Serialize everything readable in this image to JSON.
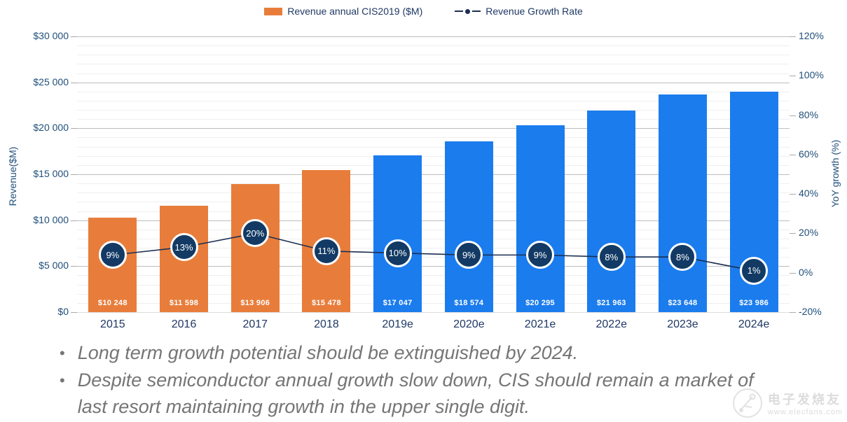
{
  "legend": {
    "bar_label": "Revenue annual CIS2019 ($M)",
    "line_label": "Revenue Growth Rate"
  },
  "chart_data": {
    "type": "bar",
    "subtype": "bar+line combo",
    "categories": [
      "2015",
      "2016",
      "2017",
      "2018",
      "2019e",
      "2020e",
      "2021e",
      "2022e",
      "2023e",
      "2024e"
    ],
    "series": [
      {
        "name": "Revenue annual CIS2019 ($M)",
        "type": "bar",
        "axis": "left",
        "values": [
          10248,
          11598,
          13906,
          15478,
          17047,
          18574,
          20295,
          21963,
          23648,
          23986
        ],
        "labels": [
          "$10 248",
          "$11 598",
          "$13 906",
          "$15 478",
          "$17 047",
          "$18 574",
          "$20 295",
          "$21 963",
          "$23 648",
          "$23 986"
        ],
        "point_colors": [
          "#E87D3B",
          "#E87D3B",
          "#E87D3B",
          "#E87D3B",
          "#1B7CEE",
          "#1B7CEE",
          "#1B7CEE",
          "#1B7CEE",
          "#1B7CEE",
          "#1B7CEE"
        ]
      },
      {
        "name": "Revenue Growth Rate",
        "type": "line",
        "axis": "right",
        "values": [
          9,
          13,
          20,
          11,
          10,
          9,
          9,
          8,
          8,
          1
        ],
        "labels": [
          "9%",
          "13%",
          "20%",
          "11%",
          "10%",
          "9%",
          "9%",
          "8%",
          "8%",
          "1%"
        ],
        "line_color": "#1C2E52",
        "marker_fill": "#123A64",
        "marker_ring": "#FFFFFF"
      }
    ],
    "left_axis": {
      "title": "Revenue($M)",
      "min": 0,
      "max": 30000,
      "major_step": 5000,
      "minor_step": 1000,
      "tick_labels": [
        "$0",
        "$5 000",
        "$10 000",
        "$15 000",
        "$20 000",
        "$25 000",
        "$30 000"
      ]
    },
    "right_axis": {
      "title": "YoY growth (%)",
      "min": -20,
      "max": 120,
      "major_step": 20,
      "tick_labels": [
        "-20%",
        "0%",
        "20%",
        "40%",
        "60%",
        "80%",
        "100%",
        "120%"
      ]
    },
    "legend_position": "top",
    "grid": "major horizontal gray, minor horizontal light"
  },
  "colors": {
    "bar_actual": "#E87D3B",
    "bar_estimate": "#1B7CEE",
    "line": "#1C2E52",
    "marker_fill": "#123A64",
    "axis_text": "#1F4E79",
    "category_text": "#1F3864",
    "grid_major": "#BDBDBD",
    "grid_minor": "#EFEFEF",
    "notes_text": "#757575"
  },
  "notes": {
    "bullets": [
      "Long term growth potential should be extinguished by 2024.",
      "Despite semiconductor annual growth slow down, CIS should remain a market of last resort maintaining growth in the upper single digit."
    ]
  },
  "watermark": {
    "name": "电子发烧友",
    "site": "www.elecfans.com"
  }
}
